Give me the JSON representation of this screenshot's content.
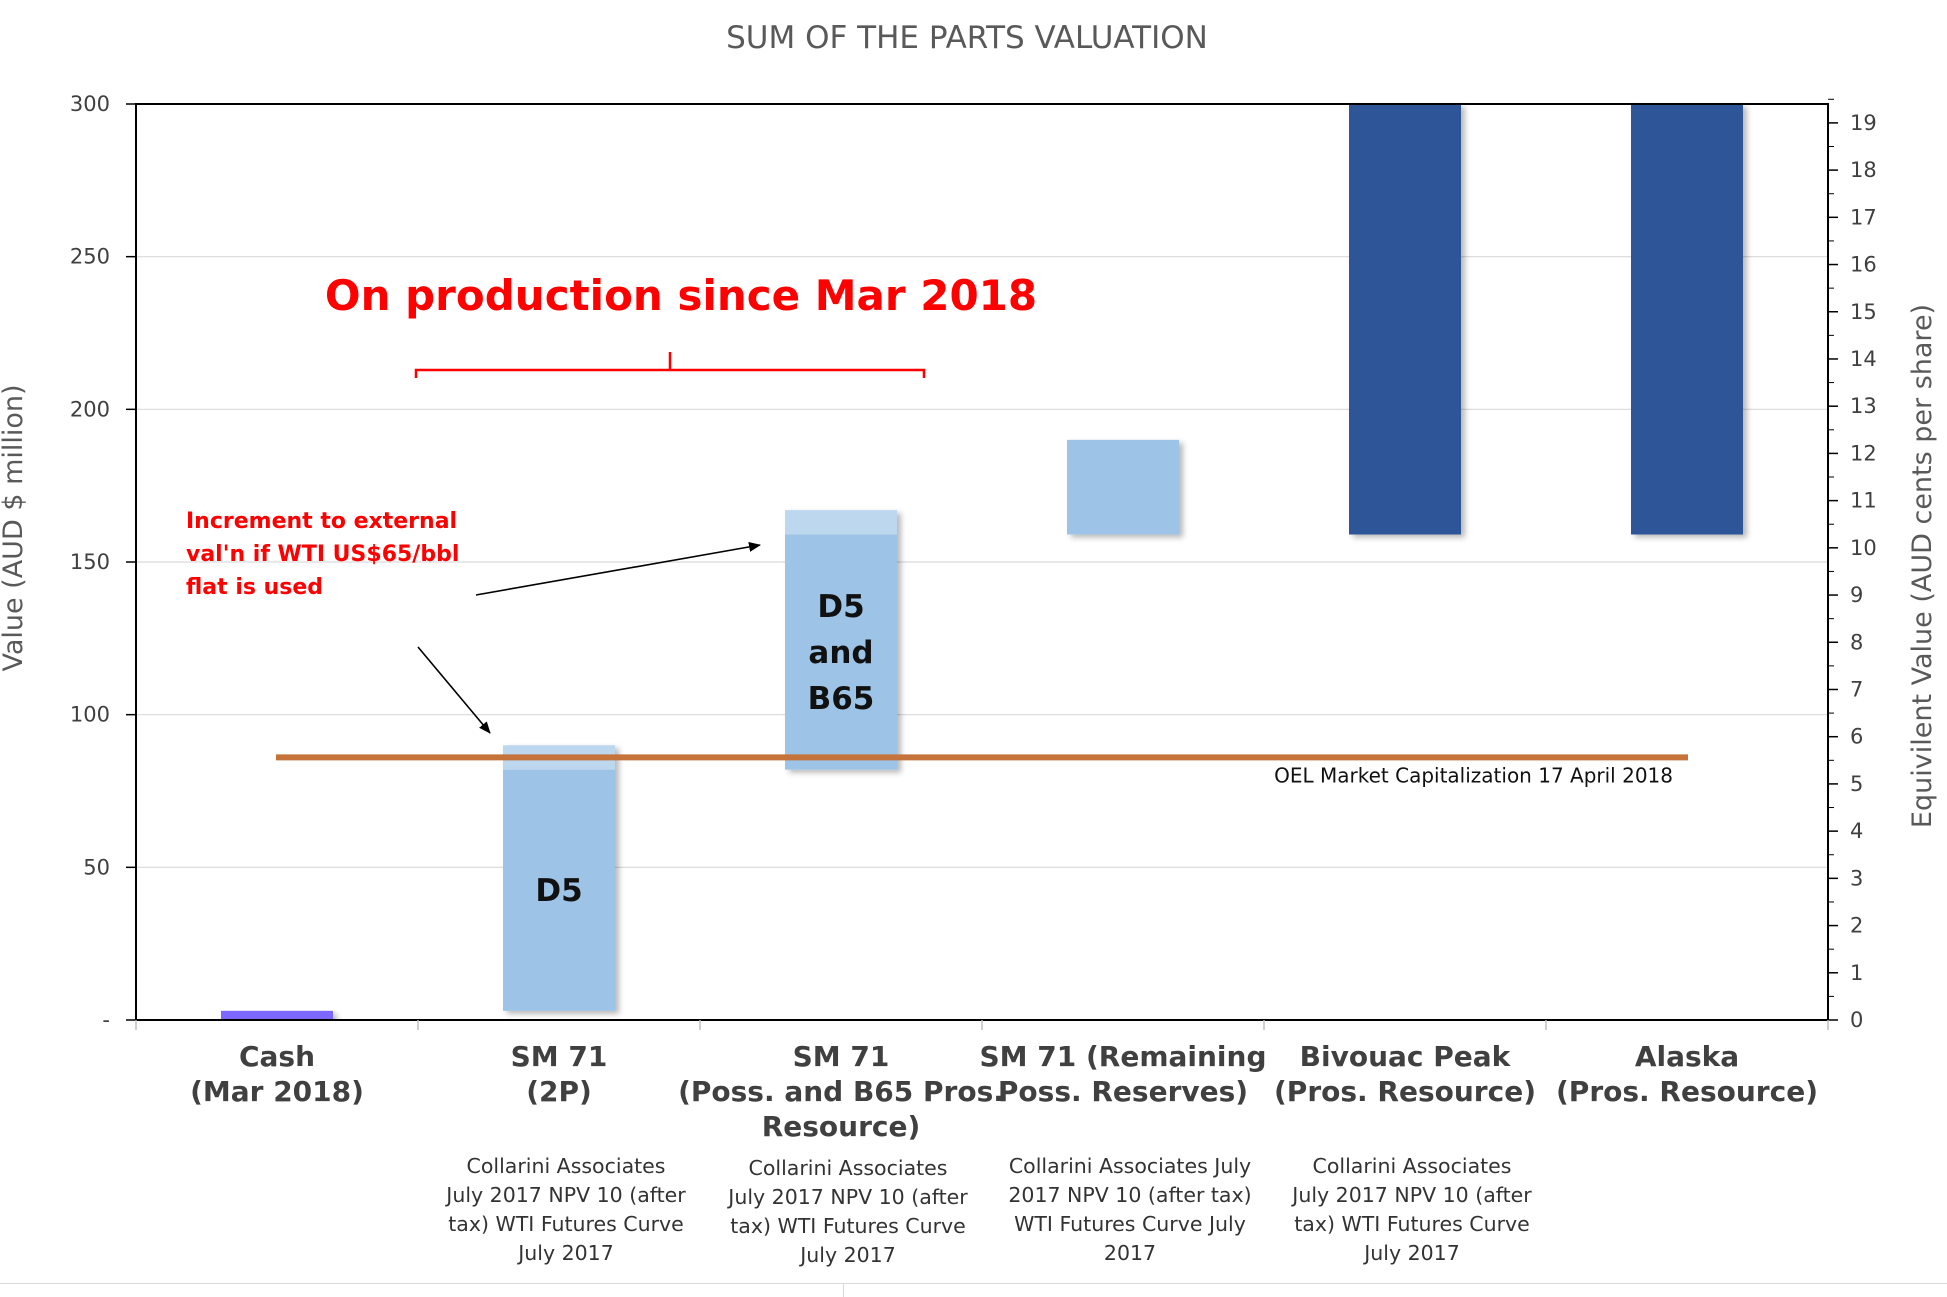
{
  "chart_data": {
    "type": "bar",
    "title": "SUM OF THE PARTS VALUATION",
    "ylabel": "Value (AUD $ million)",
    "y2label": "Equivilent Value (AUD cents per share)",
    "ylim": [
      0,
      300
    ],
    "yticks": [
      {
        "v": 0,
        "label": "-"
      },
      {
        "v": 50,
        "label": "50"
      },
      {
        "v": 100,
        "label": "100"
      },
      {
        "v": 150,
        "label": "150"
      },
      {
        "v": 200,
        "label": "200"
      },
      {
        "v": 250,
        "label": "250"
      },
      {
        "v": 300,
        "label": "300"
      }
    ],
    "y2lim": [
      0,
      19.4
    ],
    "y2ticks": [
      "0",
      "1",
      "2",
      "3",
      "4",
      "5",
      "6",
      "7",
      "8",
      "9",
      "10",
      "11",
      "12",
      "13",
      "14",
      "15",
      "16",
      "17",
      "18",
      "19"
    ],
    "grid": true,
    "categories": [
      {
        "lines": [
          "Cash",
          "(Mar 2018)"
        ],
        "note": []
      },
      {
        "lines": [
          "SM 71",
          "(2P)"
        ],
        "note": [
          "Collarini Associates",
          "July 2017 NPV 10 (after",
          "tax) WTI Futures Curve",
          "July 2017"
        ]
      },
      {
        "lines": [
          "SM 71",
          "(Poss. and B65 Pros.",
          "Resource)"
        ],
        "note": [
          "Collarini Associates",
          "July 2017 NPV 10 (after",
          "tax) WTI Futures Curve",
          "July 2017"
        ]
      },
      {
        "lines": [
          "SM 71 (Remaining",
          "Poss. Reserves)"
        ],
        "note": [
          "Collarini Associates July",
          "2017 NPV 10 (after tax)",
          "WTI Futures Curve July",
          "2017"
        ]
      },
      {
        "lines": [
          "Bivouac Peak",
          "(Pros. Resource)"
        ],
        "note": [
          "Collarini Associates",
          "July 2017 NPV 10 (after",
          "tax) WTI Futures Curve",
          "July 2017"
        ]
      },
      {
        "lines": [
          "Alaska",
          "(Pros. Resource)"
        ],
        "note": []
      }
    ],
    "bars": [
      {
        "base": 0,
        "top": 3,
        "increment": 0,
        "color": "#7b68ff",
        "label": ""
      },
      {
        "base": 3,
        "top": 82,
        "increment": 8,
        "color": "#9dc3e6",
        "label": [
          "D5"
        ]
      },
      {
        "base": 82,
        "top": 159,
        "increment": 8,
        "color": "#9dc3e6",
        "label": [
          "D5",
          "and",
          "B65"
        ]
      },
      {
        "base": 159,
        "top": 190,
        "increment": 0,
        "color": "#9dc3e6",
        "label": ""
      },
      {
        "base": 159,
        "top": 300,
        "increment": 0,
        "color": "#2f5597",
        "label": ""
      },
      {
        "base": 159,
        "top": 300,
        "increment": 0,
        "color": "#2f5597",
        "label": ""
      }
    ],
    "increment_color": "#bdd7ee",
    "market_cap": {
      "value": 86,
      "label": "OEL Market Capitalization 17 April 2018",
      "color": "#c5733a"
    },
    "annotations": {
      "production": "On production since Mar 2018",
      "increment": [
        "Increment to external",
        "val'n if WTI US$65/bbl",
        "flat is used"
      ]
    }
  }
}
